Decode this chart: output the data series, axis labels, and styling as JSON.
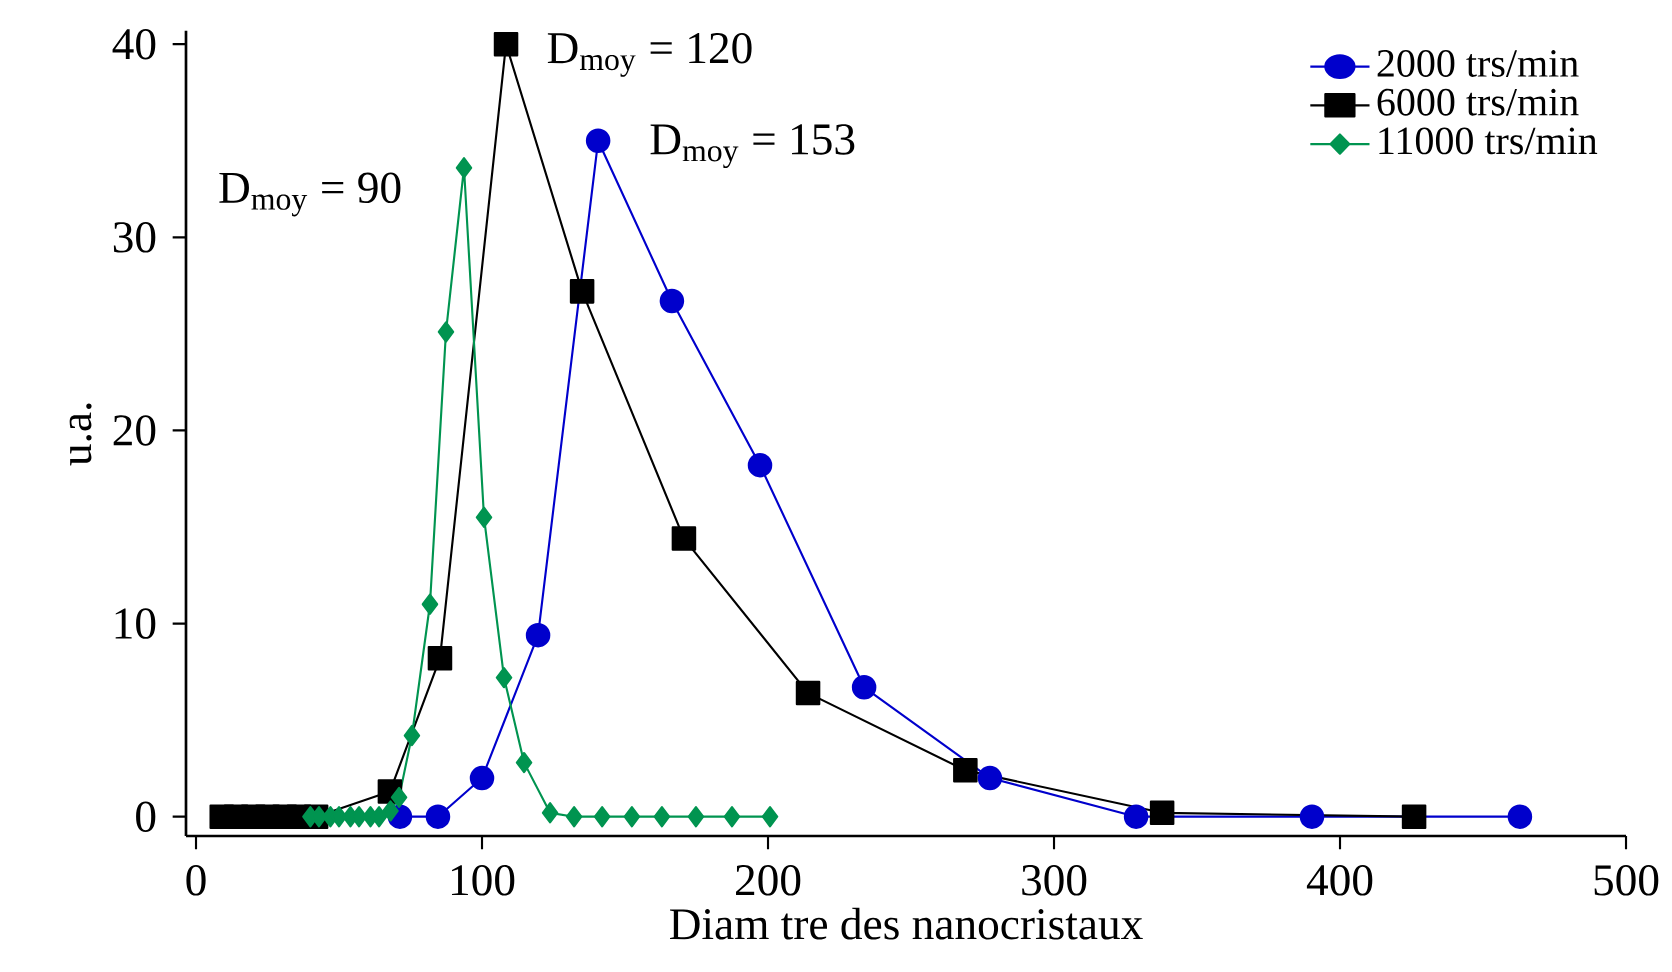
{
  "chart_data": {
    "type": "line",
    "xlabel": "Diam tre des nanocristaux",
    "ylabel": "u.a.",
    "xlim": [
      -3.5,
      500
    ],
    "ylim": [
      -1,
      40.7
    ],
    "xticks": [
      0,
      100,
      200,
      300,
      400,
      500
    ],
    "yticks": [
      0,
      10,
      20,
      30,
      40
    ],
    "grid": false,
    "legend": "top right",
    "series": [
      {
        "name": "2000 trs/min",
        "color": "#0000cc",
        "marker": "circle",
        "x": [
          71.3,
          84.6,
          100,
          119.6,
          140.6,
          166.4,
          197.2,
          233.6,
          277.6,
          328.7,
          390.2,
          462.9
        ],
        "values": [
          0,
          0,
          2.0,
          9.4,
          35.0,
          26.7,
          18.2,
          6.7,
          2.0,
          0,
          0,
          0
        ]
      },
      {
        "name": "6000 trs/min",
        "color": "#000000",
        "marker": "square",
        "x": [
          9,
          14,
          20,
          25,
          31,
          36,
          42,
          67.8,
          85.3,
          108.4,
          135,
          170.6,
          214,
          269,
          337.8,
          425.9
        ],
        "values": [
          0,
          0,
          0,
          0,
          0,
          0,
          0,
          1.3,
          8.2,
          40.0,
          27.2,
          14.4,
          6.4,
          2.4,
          0.2,
          0
        ]
      },
      {
        "name": "11000 trs/min",
        "color": "#009450",
        "marker": "diamond",
        "x": [
          40,
          43,
          47,
          50,
          54,
          57,
          61,
          64,
          68,
          71,
          75.5,
          81.8,
          87.4,
          93.7,
          100.7,
          107.7,
          114.7,
          123.8,
          132.2,
          142,
          152.4,
          162.9,
          174.8,
          187.4,
          200.7
        ],
        "values": [
          0,
          0,
          0,
          0,
          0,
          0,
          0,
          0,
          0.3,
          1.0,
          4.2,
          11.0,
          25.1,
          33.6,
          15.5,
          7.2,
          2.8,
          0.2,
          0,
          0,
          0,
          0,
          0,
          0,
          0
        ]
      }
    ],
    "annotations": [
      {
        "text": "D$_{moy}$ = 90",
        "x": 93.7,
        "y": 33.6
      },
      {
        "text": "D$_{moy}$ = 120",
        "x": 108.4,
        "y": 40.0
      },
      {
        "text": "D$_{moy}$ = 153",
        "x": 140.6,
        "y": 35.0
      }
    ]
  }
}
